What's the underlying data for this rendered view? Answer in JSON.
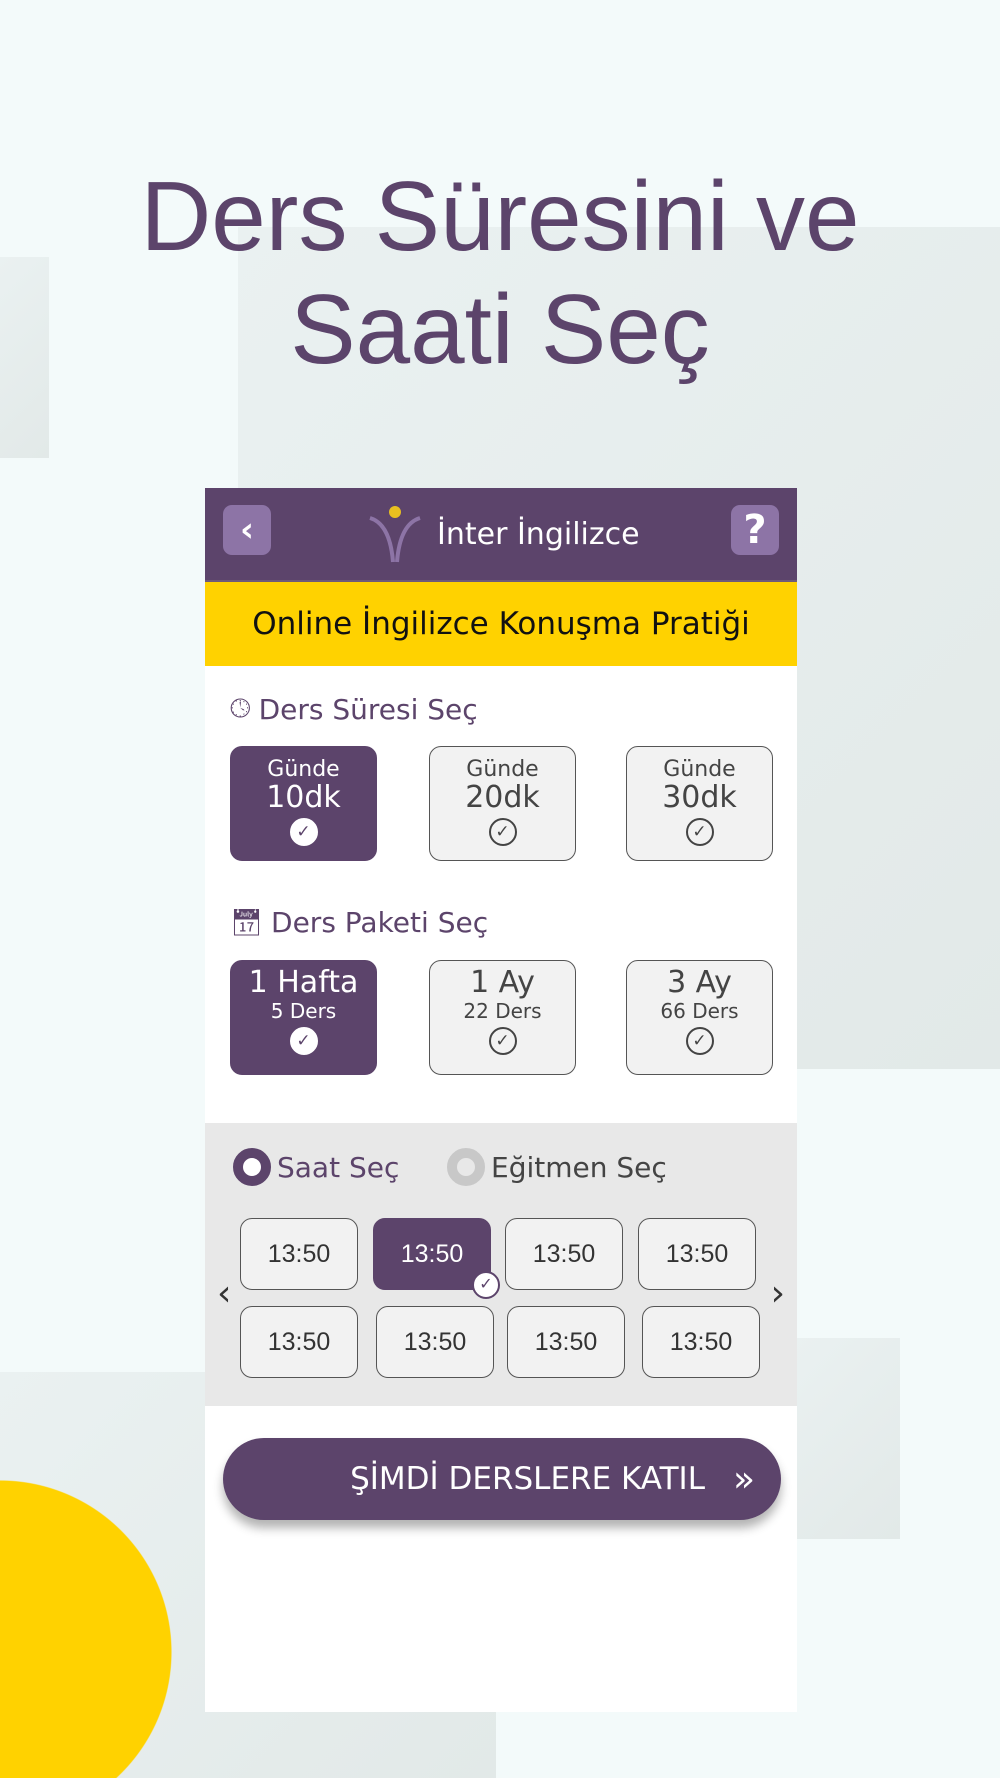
{
  "title_line1": "Ders Süresini ve",
  "title_line2": "Saati Seç",
  "header": {
    "brand": "İnter İngilizce",
    "back": "‹",
    "help": "?"
  },
  "banner": "Online İngilizce Konuşma Pratiği",
  "duration": {
    "label": "Ders Süresi Seç",
    "options": [
      {
        "top": "Günde",
        "main": "10dk",
        "selected": true
      },
      {
        "top": "Günde",
        "main": "20dk",
        "selected": false
      },
      {
        "top": "Günde",
        "main": "30dk",
        "selected": false
      }
    ]
  },
  "package": {
    "label": "Ders Paketi Seç",
    "options": [
      {
        "main": "1 Hafta",
        "sub": "5 Ders",
        "selected": true
      },
      {
        "main": "1 Ay",
        "sub": "22 Ders",
        "selected": false
      },
      {
        "main": "3 Ay",
        "sub": "66 Ders",
        "selected": false
      }
    ]
  },
  "mode": {
    "saat": "Saat Seç",
    "egitmen": "Eğitmen Seç",
    "selected": "saat"
  },
  "slots": [
    "13:50",
    "13:50",
    "13:50",
    "13:50",
    "13:50",
    "13:50",
    "13:50",
    "13:50"
  ],
  "selected_slot": 1,
  "cta": "ŞİMDİ DERSLERE KATIL",
  "colors": {
    "purple": "#5c446b",
    "yellow": "#ffd200"
  }
}
